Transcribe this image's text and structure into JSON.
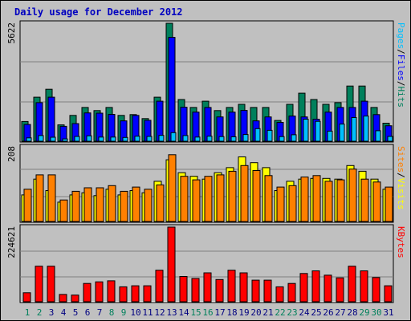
{
  "title": "Daily usage for December 2012",
  "colors": {
    "hits": "#00805c",
    "files": "#0000ff",
    "pages": "#00c0ff",
    "visits": "#ffff00",
    "sites": "#ff8000",
    "kbytes": "#ff0000",
    "weekend_day": "#00805c",
    "weekday": "#000080"
  },
  "chart_data": [
    {
      "type": "bar",
      "panel": "hits-files-pages",
      "ymax_label": "5622",
      "ylim": [
        0,
        5622
      ],
      "categories": [
        "1",
        "2",
        "3",
        "4",
        "5",
        "6",
        "7",
        "8",
        "9",
        "10",
        "11",
        "12",
        "13",
        "14",
        "15",
        "16",
        "17",
        "18",
        "19",
        "20",
        "21",
        "22",
        "23",
        "24",
        "25",
        "26",
        "27",
        "28",
        "29",
        "30",
        "31"
      ],
      "legend": [
        {
          "name": "Pages",
          "color": "#00c0ff"
        },
        {
          "name": "/",
          "color": "#000000"
        },
        {
          "name": "Files",
          "color": "#0000ff"
        },
        {
          "name": "/",
          "color": "#000000"
        },
        {
          "name": "Hits",
          "color": "#00805c"
        }
      ],
      "series": [
        {
          "name": "Hits",
          "color": "#00805c",
          "values": [
            940,
            2100,
            2480,
            780,
            1230,
            1610,
            1460,
            1610,
            1230,
            1270,
            1080,
            2100,
            5622,
            1990,
            1610,
            1910,
            1460,
            1610,
            1760,
            1610,
            1610,
            990,
            1760,
            2290,
            1990,
            1760,
            1840,
            2630,
            2630,
            1610,
            860
          ]
        },
        {
          "name": "Files",
          "color": "#0000ff",
          "values": [
            800,
            1840,
            2100,
            710,
            840,
            1350,
            1340,
            1280,
            970,
            1230,
            1000,
            1910,
            4950,
            1620,
            1390,
            1610,
            1160,
            1390,
            1470,
            970,
            1160,
            900,
            1200,
            1160,
            1050,
            1390,
            1610,
            1610,
            1910,
            1270,
            740
          ]
        },
        {
          "name": "Pages",
          "color": "#00c0ff",
          "values": [
            160,
            270,
            190,
            110,
            230,
            260,
            200,
            200,
            180,
            240,
            230,
            280,
            410,
            270,
            200,
            240,
            220,
            210,
            320,
            600,
            520,
            220,
            310,
            1050,
            950,
            480,
            820,
            1130,
            1200,
            500,
            230
          ]
        }
      ]
    },
    {
      "type": "bar",
      "panel": "visits-sites",
      "ymax_label": "208",
      "ylim": [
        0,
        208
      ],
      "categories": [
        "1",
        "2",
        "3",
        "4",
        "5",
        "6",
        "7",
        "8",
        "9",
        "10",
        "11",
        "12",
        "13",
        "14",
        "15",
        "16",
        "17",
        "18",
        "19",
        "20",
        "21",
        "22",
        "23",
        "24",
        "25",
        "26",
        "27",
        "28",
        "29",
        "30",
        "31"
      ],
      "legend": [
        {
          "name": "Sites",
          "color": "#ff8000"
        },
        {
          "name": "/",
          "color": "#000000"
        },
        {
          "name": "Visits",
          "color": "#ffff00"
        }
      ],
      "series": [
        {
          "name": "Visits",
          "color": "#ffff00",
          "values": [
            74,
            118,
            86,
            54,
            74,
            80,
            72,
            90,
            74,
            86,
            80,
            112,
            172,
            136,
            126,
            118,
            136,
            150,
            180,
            164,
            150,
            86,
            112,
            118,
            120,
            120,
            118,
            156,
            140,
            118,
            90
          ]
        },
        {
          "name": "Sites",
          "color": "#ff8000",
          "values": [
            90,
            130,
            130,
            60,
            84,
            94,
            94,
            100,
            84,
            96,
            90,
            102,
            186,
            126,
            116,
            126,
            130,
            140,
            156,
            142,
            128,
            96,
            100,
            124,
            128,
            112,
            116,
            146,
            118,
            110,
            96
          ]
        }
      ]
    },
    {
      "type": "bar",
      "panel": "kbytes",
      "ymax_label": "224621",
      "ylim": [
        0,
        224621
      ],
      "categories": [
        "1",
        "2",
        "3",
        "4",
        "5",
        "6",
        "7",
        "8",
        "9",
        "10",
        "11",
        "12",
        "13",
        "14",
        "15",
        "16",
        "17",
        "18",
        "19",
        "20",
        "21",
        "22",
        "23",
        "24",
        "25",
        "26",
        "27",
        "28",
        "29",
        "30",
        "31"
      ],
      "legend": [
        {
          "name": "KBytes",
          "color": "#ff0000"
        }
      ],
      "series": [
        {
          "name": "KBytes",
          "color": "#ff0000",
          "values": [
            27000,
            107000,
            107000,
            22000,
            20000,
            55000,
            60000,
            63000,
            45000,
            48000,
            48000,
            95000,
            224621,
            76000,
            70000,
            87000,
            67000,
            95000,
            87000,
            65000,
            65000,
            45000,
            55000,
            85000,
            93000,
            80000,
            72000,
            107000,
            93000,
            73000,
            48000
          ]
        }
      ]
    }
  ],
  "days": {
    "labels": [
      "1",
      "2",
      "3",
      "4",
      "5",
      "6",
      "7",
      "8",
      "9",
      "10",
      "11",
      "12",
      "13",
      "14",
      "15",
      "16",
      "17",
      "18",
      "19",
      "20",
      "21",
      "22",
      "23",
      "24",
      "25",
      "26",
      "27",
      "28",
      "29",
      "30",
      "31"
    ],
    "weekend": [
      true,
      true,
      false,
      false,
      false,
      false,
      false,
      true,
      true,
      false,
      false,
      false,
      false,
      false,
      true,
      true,
      false,
      false,
      false,
      false,
      false,
      true,
      true,
      false,
      false,
      false,
      false,
      false,
      true,
      true,
      false
    ]
  }
}
